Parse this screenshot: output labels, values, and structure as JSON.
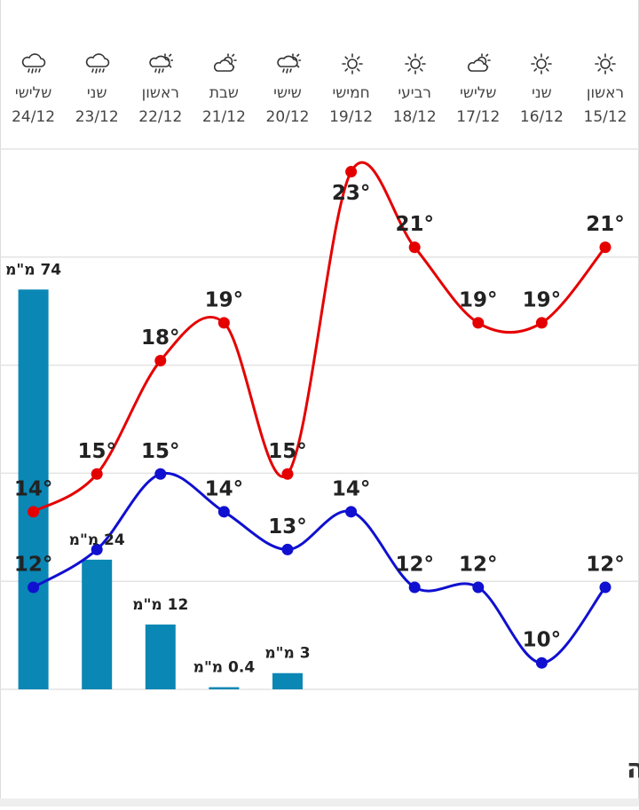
{
  "chart_data": {
    "type": "line",
    "title": "מזג אוויר שעתי בנתניה",
    "categories": [
      "15/12",
      "16/12",
      "17/12",
      "18/12",
      "19/12",
      "20/12",
      "21/12",
      "22/12",
      "23/12",
      "24/12"
    ],
    "day_names": [
      "ראשון",
      "שני",
      "שלישי",
      "רביעי",
      "חמישי",
      "שישי",
      "שבת",
      "ראשון",
      "שני",
      "שלישי"
    ],
    "ylim": [
      9.3,
      23.6
    ],
    "series": [
      {
        "color": "#e50000",
        "values": [
          21,
          19,
          19,
          21,
          23,
          15,
          19,
          18,
          15,
          14
        ],
        "value_labels": [
          "21°",
          "19°",
          "19°",
          "21°",
          "23°",
          "15°",
          "19°",
          "18°",
          "15°",
          "14°"
        ]
      },
      {
        "color": "#1010d0",
        "values": [
          12,
          10,
          12,
          12,
          14,
          13,
          14,
          15,
          13,
          12
        ],
        "value_labels": [
          "12°",
          "10°",
          "12°",
          "12°",
          "14°",
          "13°",
          "14°",
          "15°",
          null,
          "12°"
        ]
      },
      {
        "type": "bar",
        "axis": "y2",
        "color": "#0a87b5",
        "values": [
          null,
          null,
          null,
          null,
          null,
          3,
          0.4,
          12,
          24,
          74
        ],
        "value_labels": [
          null,
          null,
          null,
          null,
          null,
          "3 מ\"מ",
          "0.4 מ\"מ",
          "12 מ\"מ",
          "24 מ\"מ",
          "74 מ\"מ"
        ]
      }
    ],
    "y2lim": [
      0,
      100
    ],
    "y2ticks": [
      0,
      20,
      40,
      60,
      80,
      100
    ],
    "grid": true
  }
}
